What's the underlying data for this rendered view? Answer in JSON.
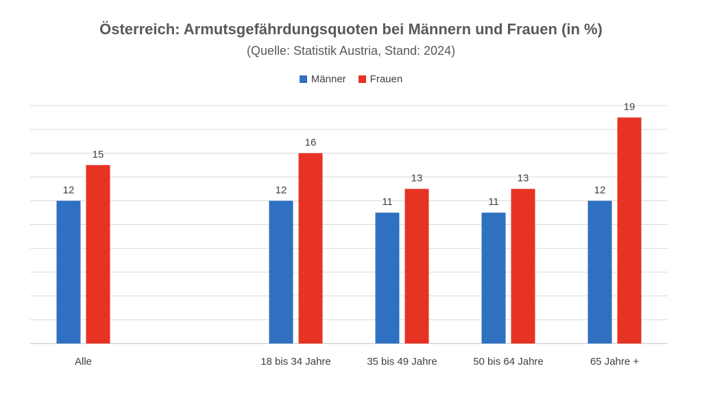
{
  "chart_data": {
    "type": "bar",
    "title": "Österreich: Armutsgefährdungsquoten bei Männern und Frauen (in %)",
    "subtitle": "(Quelle: Statistik Austria, Stand: 2024)",
    "categories": [
      "Alle",
      "",
      "18 bis 34 Jahre",
      "35 bis 49 Jahre",
      "50 bis 64 Jahre",
      "65 Jahre +"
    ],
    "series": [
      {
        "name": "Männer",
        "color": "#3070c0",
        "values": [
          12,
          null,
          12,
          11,
          11,
          12
        ]
      },
      {
        "name": "Frauen",
        "color": "#e63323",
        "values": [
          15,
          null,
          16,
          13,
          13,
          19
        ]
      }
    ],
    "ylim": [
      0,
      20
    ],
    "grid": true,
    "legend": "top-center",
    "xlabel": "",
    "ylabel": ""
  }
}
